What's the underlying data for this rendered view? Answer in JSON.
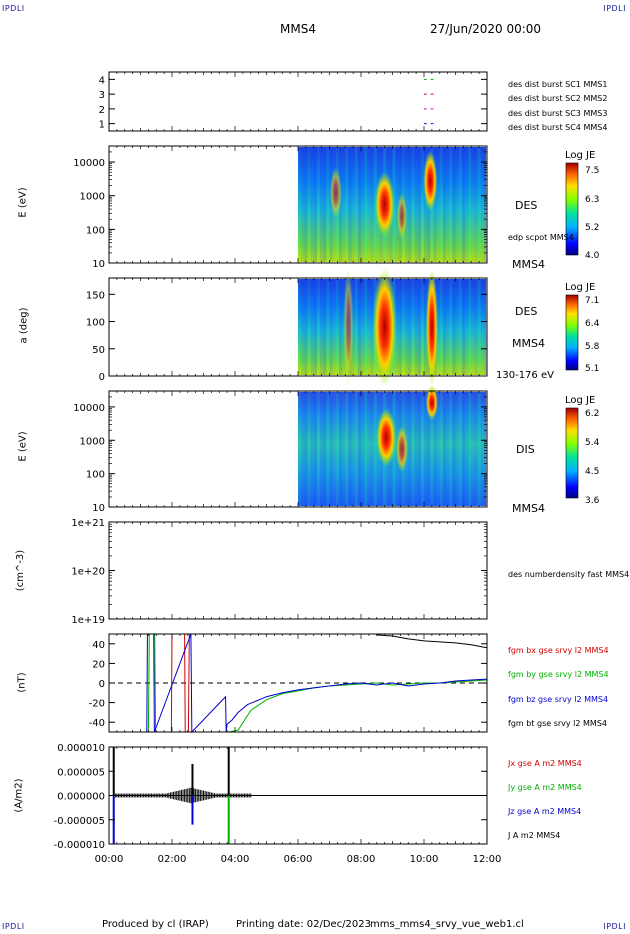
{
  "header": {
    "corner_tl": "IPDLI",
    "corner_tr": "IPDLI",
    "corner_bl": "IPDLI",
    "corner_br": "IPDLI",
    "spacecraft": "MMS4",
    "date": "27/Jun/2020 00:00"
  },
  "footer": {
    "produced_by": "Produced by cl (IRAP)",
    "printing_date": "Printing date: 02/Dec/2023",
    "script_name": "mms_mms4_srvy_vue_web1.cl"
  },
  "colors": {
    "mms1": "#1010c0",
    "mms2": "#d000d0",
    "mms3": "#d00000",
    "mms4": "#00b000",
    "bx": "#d00000",
    "by": "#00b000",
    "bz": "#0000d0",
    "bt": "#000000"
  },
  "chart_data": [
    {
      "type": "line",
      "panel": "burst-availability",
      "ylim": [
        0.5,
        4.5
      ],
      "yticks": [
        "1",
        "2",
        "3",
        "4"
      ],
      "legend_placement": "right",
      "series": [
        {
          "name": "des dist burst SC1 MMS1",
          "level": 1,
          "x": [
            "10:00",
            "10:18"
          ],
          "color": "#1010c0"
        },
        {
          "name": "des dist burst SC2 MMS2",
          "level": 2,
          "x": [
            "10:00",
            "10:18"
          ],
          "color": "#d000d0"
        },
        {
          "name": "des dist burst SC3 MMS3",
          "level": 3,
          "x": [
            "10:00",
            "10:18"
          ],
          "color": "#d00000"
        },
        {
          "name": "des dist burst SC4 MMS4",
          "level": 4,
          "x": [
            "10:00",
            "10:18"
          ],
          "color": "#00b000"
        }
      ]
    },
    {
      "type": "heatmap",
      "panel": "des-energy-spectrogram",
      "ylabel": "E (eV)",
      "yscale": "log",
      "ylim": [
        10,
        30000
      ],
      "yticks": [
        "10",
        "100",
        "1000",
        "10000"
      ],
      "data_start": "06:00",
      "instrument": "DES",
      "overlay": "edp scpot MMS4",
      "spacecraft": "MMS4",
      "colorbar": {
        "title": "Log JE",
        "ticks": [
          "7.5",
          "6.3",
          "5.2",
          "4.0"
        ],
        "min": 4.0,
        "max": 7.5
      }
    },
    {
      "type": "heatmap",
      "panel": "des-pitch-angle",
      "ylabel": "a (deg)",
      "ylim": [
        0,
        180
      ],
      "yticks": [
        "0",
        "50",
        "100",
        "150"
      ],
      "data_start": "06:00",
      "instrument": "DES",
      "spacecraft": "MMS4",
      "energy_band": "130-176 eV",
      "colorbar": {
        "title": "Log JE",
        "ticks": [
          "7.1",
          "6.4",
          "5.8",
          "5.1"
        ],
        "min": 5.1,
        "max": 7.1
      }
    },
    {
      "type": "heatmap",
      "panel": "dis-energy-spectrogram",
      "ylabel": "E (eV)",
      "yscale": "log",
      "ylim": [
        10,
        30000
      ],
      "yticks": [
        "10",
        "100",
        "1000",
        "10000"
      ],
      "data_start": "06:00",
      "instrument": "DIS",
      "spacecraft": "MMS4",
      "colorbar": {
        "title": "Log JE",
        "ticks": [
          "6.2",
          "5.4",
          "4.5",
          "3.6"
        ],
        "min": 3.6,
        "max": 6.2
      }
    },
    {
      "type": "line",
      "panel": "density",
      "ylabel": "(cm^-3)",
      "yscale": "log",
      "ylim": [
        1e+19,
        1e+21
      ],
      "yticks": [
        "1e+19",
        "1e+20",
        "1e+21"
      ],
      "series": [
        {
          "name": "des numberdensity fast MMS4",
          "x": [],
          "y": []
        }
      ]
    },
    {
      "type": "line",
      "panel": "magnetic-field",
      "ylabel": "(nT)",
      "ylim": [
        -50,
        50
      ],
      "yticks": [
        "-40",
        "-20",
        "0",
        "20",
        "40"
      ],
      "zero_line": "dashed",
      "series": [
        {
          "name": "fgm bx gse srvy l2 MMS4",
          "color": "#d00000",
          "x": [
            1.98,
            2.0,
            2.4,
            2.42,
            2.52,
            2.55
          ],
          "y": [
            -50,
            50,
            50,
            -50,
            -50,
            50
          ]
        },
        {
          "name": "fgm by gse srvy l2 MMS4",
          "color": "#00b000",
          "x": [
            1.25,
            1.28,
            1.45,
            1.48,
            3.6,
            3.8,
            4.1,
            4.5,
            5.0,
            5.5,
            6.0,
            6.5,
            7.0,
            7.5,
            8.0,
            8.5,
            9.0,
            9.5,
            10.0,
            10.5,
            11.0,
            11.5,
            12.0
          ],
          "y": [
            -50,
            50,
            50,
            -50,
            -50,
            -50,
            -48,
            -28,
            -17,
            -11,
            -8,
            -5,
            -3,
            -2,
            -1,
            0,
            -2,
            -1,
            0,
            0,
            1,
            2,
            3
          ]
        },
        {
          "name": "fgm bz gse srvy l2 MMS4",
          "color": "#0000d0",
          "x": [
            1.2,
            1.22,
            1.42,
            1.44,
            2.6,
            2.63,
            3.7,
            3.72,
            3.75,
            3.9,
            4.1,
            4.4,
            5.0,
            5.5,
            6.0,
            6.5,
            7.0,
            7.5,
            8.0,
            8.5,
            9.0,
            9.5,
            10.0,
            10.5,
            11.0,
            11.5,
            12.0
          ],
          "y": [
            -50,
            50,
            50,
            -50,
            50,
            -50,
            -14,
            -50,
            -42,
            -38,
            -30,
            -22,
            -14,
            -10,
            -7,
            -5,
            -3,
            -1,
            0,
            -2,
            0,
            -3,
            -1,
            0,
            2,
            3,
            4
          ]
        },
        {
          "name": "fgm bt gse srvy l2 MMS4",
          "color": "#000000",
          "x": [
            8.5,
            9.0,
            9.5,
            10.0,
            10.5,
            11.0,
            11.5,
            12.0
          ],
          "y": [
            49,
            48,
            45,
            43,
            42,
            41,
            39,
            36
          ]
        }
      ]
    },
    {
      "type": "line",
      "panel": "current-density",
      "ylabel": "(A/m2)",
      "ylim": [
        -1e-05,
        1e-05
      ],
      "yticks": [
        "-0.000010",
        "-0.000005",
        "0.000000",
        "0.000005",
        "0.000010"
      ],
      "series": [
        {
          "name": "Jx gse A m2 MMS4",
          "color": "#d00000"
        },
        {
          "name": "Jy gse A m2 MMS4",
          "color": "#00b000"
        },
        {
          "name": "Jz gse A m2 MMS4",
          "color": "#0000d0"
        },
        {
          "name": "J A m2 MMS4",
          "color": "#000000"
        }
      ],
      "spikes": [
        {
          "x": 0.15,
          "y": 1e-05,
          "series": "J A m2 MMS4"
        },
        {
          "x": 0.15,
          "y": -1e-05,
          "series": "Jz gse A m2 MMS4"
        },
        {
          "x": 2.65,
          "y": 6.5e-06,
          "series": "J A m2 MMS4"
        },
        {
          "x": 2.65,
          "y": -6e-06,
          "series": "Jz gse A m2 MMS4"
        },
        {
          "x": 3.8,
          "y": 1e-05,
          "series": "J A m2 MMS4"
        },
        {
          "x": 3.8,
          "y": -1e-05,
          "series": "Jy gse A m2 MMS4"
        }
      ]
    }
  ],
  "time_axis": {
    "ticks": [
      "00:00",
      "02:00",
      "04:00",
      "06:00",
      "08:00",
      "10:00",
      "12:00"
    ],
    "range_hours": [
      0,
      12
    ]
  }
}
